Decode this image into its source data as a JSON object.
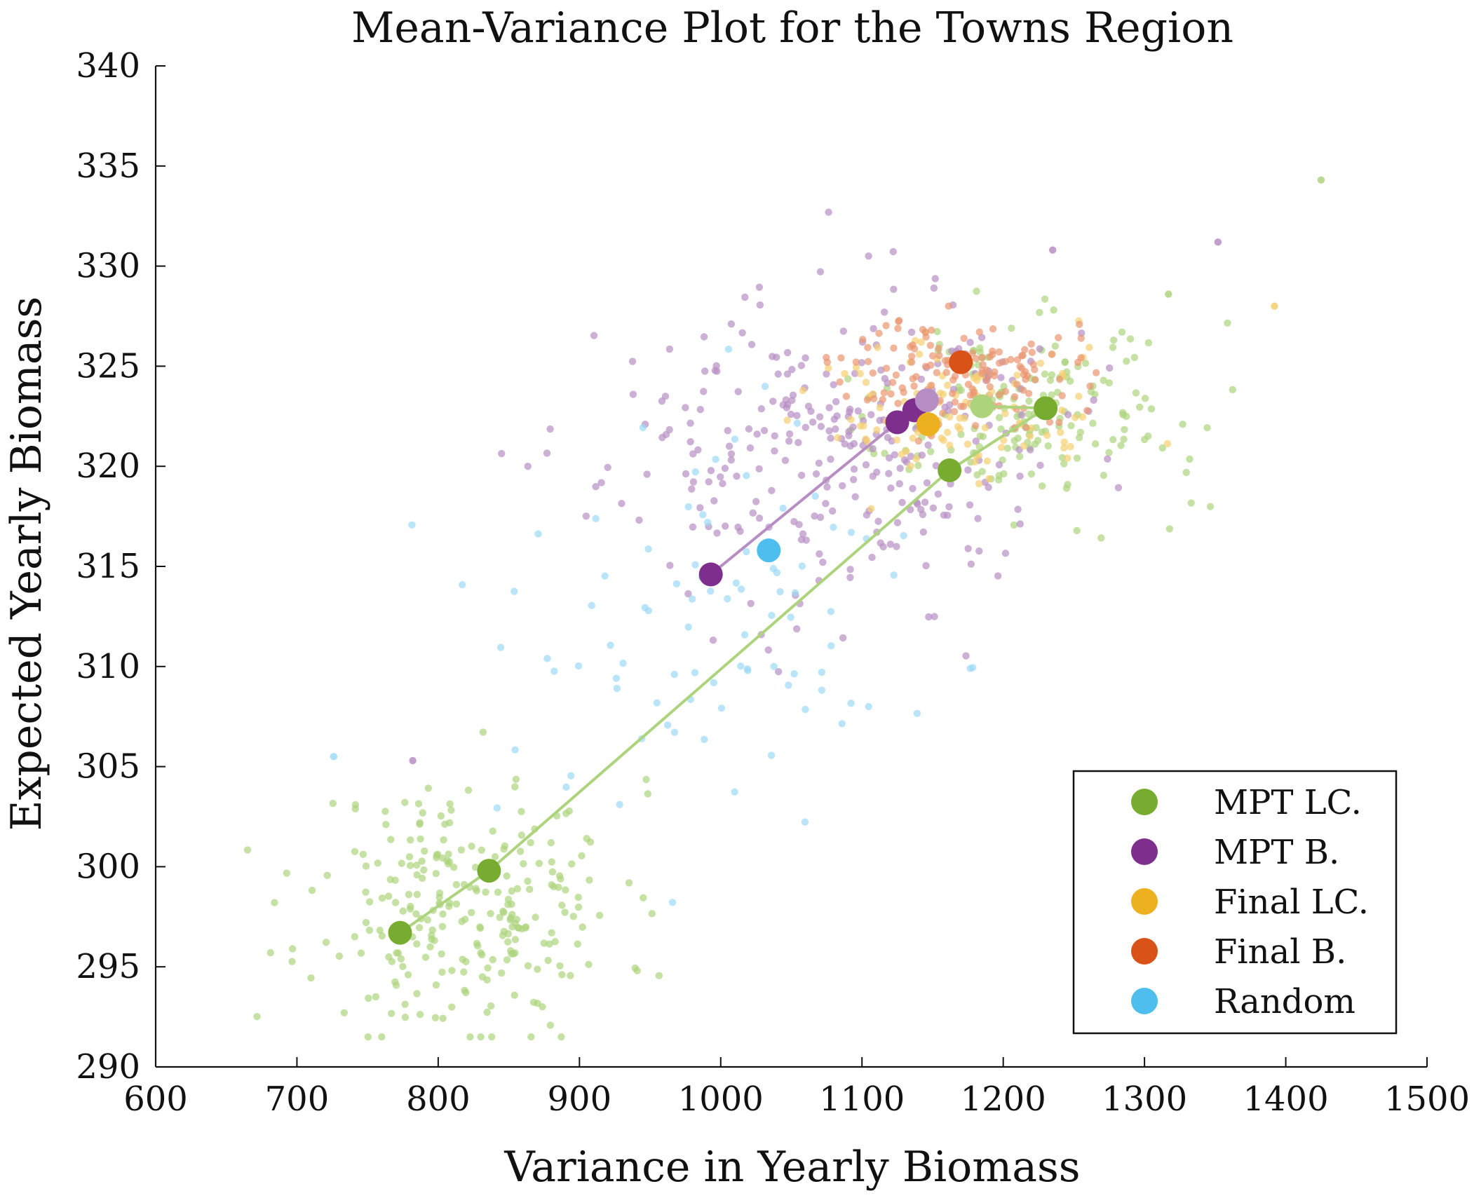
{
  "chart_data": {
    "type": "scatter",
    "title": "Mean-Variance Plot for the Towns Region",
    "xlabel": "Variance in Yearly Biomass",
    "ylabel": "Expected Yearly Biomass",
    "xlim": [
      600,
      1500
    ],
    "ylim": [
      290,
      340
    ],
    "xticks": [
      600,
      700,
      800,
      900,
      1000,
      1100,
      1200,
      1300,
      1400,
      1500
    ],
    "yticks": [
      290,
      295,
      300,
      305,
      310,
      315,
      320,
      325,
      330,
      335,
      340
    ],
    "grid": false,
    "legend_position": "bottom-right",
    "series": [
      {
        "name": "MPT LC.",
        "color": "#77ac30",
        "light_color": "#add47c",
        "cloud": {
          "count": 260,
          "center": [
            820,
            298
          ],
          "spread": [
            55,
            3.2
          ],
          "seed": 11
        },
        "cloud2": {
          "count": 170,
          "center": [
            1215,
            322.5
          ],
          "spread": [
            55,
            2.2
          ],
          "seed": 17
        },
        "frontier": [
          [
            773,
            296.7
          ],
          [
            836,
            299.8
          ],
          [
            1162,
            319.8
          ],
          [
            1230,
            322.9
          ],
          [
            1185,
            323.0
          ]
        ],
        "highlight": [
          [
            773,
            296.7
          ],
          [
            836,
            299.8
          ],
          [
            1162,
            319.8
          ],
          [
            1230,
            322.9
          ],
          [
            1185,
            323.0
          ]
        ],
        "outliers": [
          [
            1425,
            334.3
          ],
          [
            1317,
            328.6
          ]
        ]
      },
      {
        "name": "MPT B.",
        "color": "#7e2f8e",
        "light_color": "#b78ec3",
        "cloud": {
          "count": 300,
          "center": [
            1080,
            321
          ],
          "spread": [
            80,
            3.8
          ],
          "seed": 23
        },
        "frontier": [
          [
            993,
            314.6
          ],
          [
            1125,
            322.2
          ],
          [
            1137,
            322.8
          ],
          [
            1146,
            323.3
          ]
        ],
        "highlight": [
          [
            993,
            314.6
          ],
          [
            1125,
            322.2
          ],
          [
            1137,
            322.8
          ],
          [
            1146,
            323.3
          ]
        ],
        "outliers": [
          [
            1352,
            331.2
          ],
          [
            1235,
            330.8
          ],
          [
            782,
            305.3
          ]
        ]
      },
      {
        "name": "Final LC.",
        "color": "#edb120",
        "light_color": "#f5cf70",
        "cloud": {
          "count": 110,
          "center": [
            1165,
            322.6
          ],
          "spread": [
            55,
            1.9
          ],
          "seed": 31
        },
        "highlight": [
          [
            1147,
            322.1
          ]
        ],
        "outliers": [
          [
            1392,
            328.0
          ]
        ]
      },
      {
        "name": "Final B.",
        "color": "#d95319",
        "light_color": "#e99670",
        "cloud": {
          "count": 150,
          "center": [
            1170,
            324.6
          ],
          "spread": [
            40,
            1.4
          ],
          "seed": 37
        },
        "highlight": [
          [
            1170,
            325.2
          ]
        ],
        "outliers": []
      },
      {
        "name": "Random",
        "color": "#4dbeee",
        "light_color": "#9cdaf5",
        "cloud": {
          "count": 90,
          "center": [
            985,
            313
          ],
          "spread": [
            90,
            5.5
          ],
          "seed": 43
        },
        "highlight": [
          [
            1034,
            315.8
          ]
        ],
        "outliers": [
          [
            726,
            305.5
          ]
        ]
      }
    ]
  }
}
